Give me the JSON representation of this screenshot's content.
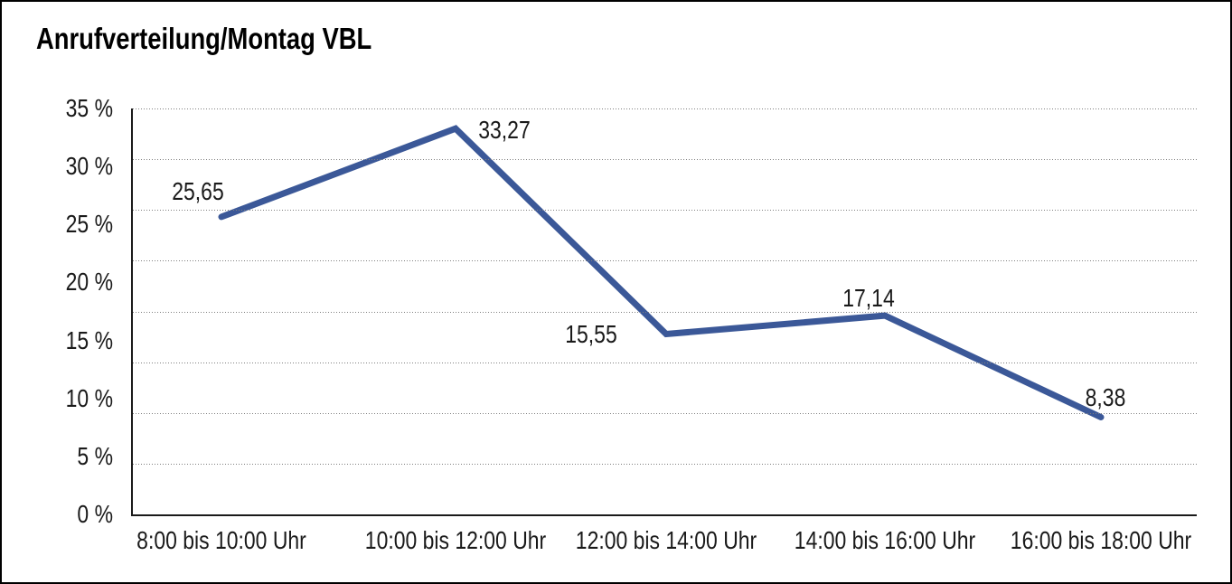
{
  "frame": {
    "background": "#ffffff",
    "border_color": "#000000"
  },
  "chart_data": {
    "type": "line",
    "title": "Anrufverteilung/Montag VBL",
    "categories": [
      "8:00 bis 10:00 Uhr",
      "10:00 bis 12:00 Uhr",
      "12:00 bis 14:00 Uhr",
      "14:00 bis 16:00 Uhr",
      "16:00 bis 18:00 Uhr"
    ],
    "values": [
      25.65,
      33.27,
      15.55,
      17.14,
      8.38
    ],
    "value_labels": [
      "25,65",
      "33,27",
      "15,55",
      "17,14",
      "8,38"
    ],
    "xlabel": "",
    "ylabel": "",
    "ylim": [
      0,
      35
    ],
    "ytick_labels": [
      "35 %",
      "30 %",
      "25 %",
      "20 %",
      "15 %",
      "10 %",
      "5 %",
      "0 %"
    ],
    "ytick_values": [
      35,
      30,
      25,
      20,
      15,
      10,
      5,
      0
    ],
    "grid": "horizontal-dotted",
    "gridline_intervals": 8,
    "legend": "none",
    "colors": {
      "line": "#3B5898",
      "grid": "#7f7f7f",
      "axis": "#1a1a1a",
      "text": "#1a1a1a",
      "title_text": "#000000"
    }
  }
}
